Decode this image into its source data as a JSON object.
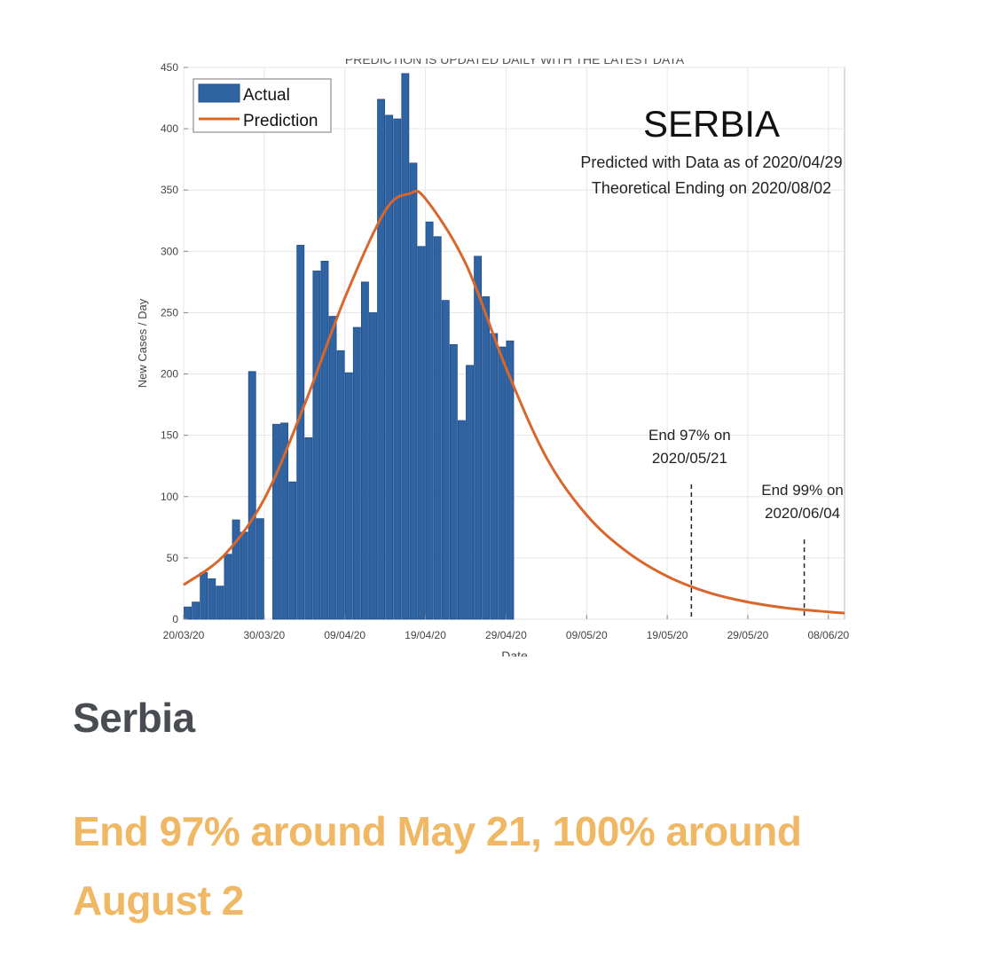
{
  "chart_data": {
    "type": "bar",
    "top_text": "PREDICTION IS UPDATED DAILY WITH THE LATEST DATA",
    "title": "SERBIA",
    "subtitle_lines": [
      "Predicted with Data as of 2020/04/29",
      "Theoretical Ending on 2020/08/02"
    ],
    "xlabel": "Date",
    "ylabel": "New Cases / Day",
    "ylim": [
      0,
      450
    ],
    "yticks": [
      0,
      50,
      100,
      150,
      200,
      250,
      300,
      350,
      400,
      450
    ],
    "x_start": "20/03/20",
    "x_end": "10/06/20",
    "xticks": [
      "20/03/20",
      "30/03/20",
      "09/04/20",
      "19/04/20",
      "29/04/20",
      "09/05/20",
      "19/05/20",
      "29/05/20",
      "08/06/20"
    ],
    "grid": true,
    "legend_position": "top-left",
    "legend": [
      "Actual",
      "Prediction"
    ],
    "series": [
      {
        "name": "Actual",
        "type": "bar",
        "color": "#2f63a2",
        "dates": [
          "20/03/20",
          "21/03/20",
          "22/03/20",
          "23/03/20",
          "24/03/20",
          "25/03/20",
          "26/03/20",
          "27/03/20",
          "28/03/20",
          "29/03/20",
          "30/03/20",
          "31/03/20",
          "01/04/20",
          "02/04/20",
          "03/04/20",
          "04/04/20",
          "05/04/20",
          "06/04/20",
          "07/04/20",
          "08/04/20",
          "09/04/20",
          "10/04/20",
          "11/04/20",
          "12/04/20",
          "13/04/20",
          "14/04/20",
          "15/04/20",
          "16/04/20",
          "17/04/20",
          "18/04/20",
          "19/04/20",
          "20/04/20",
          "21/04/20",
          "22/04/20",
          "23/04/20",
          "24/04/20",
          "25/04/20",
          "26/04/20",
          "27/04/20",
          "28/04/20",
          "29/04/20"
        ],
        "values": [
          10,
          14,
          38,
          33,
          27,
          53,
          81,
          71,
          202,
          82,
          0,
          159,
          160,
          112,
          305,
          148,
          284,
          292,
          247,
          219,
          201,
          238,
          275,
          250,
          424,
          411,
          408,
          445,
          372,
          304,
          324,
          312,
          260,
          224,
          162,
          207,
          296,
          263,
          233,
          222,
          227
        ]
      },
      {
        "name": "Prediction",
        "type": "line",
        "color": "#d9672c",
        "dates": [
          "20/03/20",
          "25/03/20",
          "30/03/20",
          "04/04/20",
          "09/04/20",
          "14/04/20",
          "17/04/20",
          "19/04/20",
          "24/04/20",
          "29/04/20",
          "04/05/20",
          "09/05/20",
          "14/05/20",
          "19/05/20",
          "24/05/20",
          "29/05/20",
          "03/06/20",
          "08/06/20",
          "10/06/20"
        ],
        "values": [
          28,
          52,
          98,
          175,
          262,
          333,
          347,
          343,
          290,
          205,
          132,
          85,
          55,
          35,
          22,
          14,
          9,
          6,
          5
        ]
      }
    ],
    "annotations": [
      {
        "date": "22/05/20",
        "lines": [
          "End 97% on",
          "2020/05/21"
        ],
        "marker_top": 110
      },
      {
        "date": "05/06/20",
        "lines": [
          "End 99% on",
          "2020/06/04"
        ],
        "marker_top": 65
      }
    ]
  },
  "texts": {
    "country": "Serbia",
    "summary": "End 97% around May 21, 100% around August 2"
  },
  "colors": {
    "country_text": "#4a4c54",
    "summary_text": "#f0b865"
  }
}
